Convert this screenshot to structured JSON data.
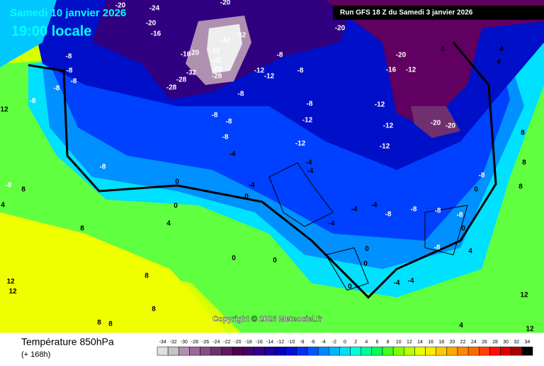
{
  "header": {
    "date": "Samedi 10 janvier 2026",
    "time": "19:00 locale",
    "run": "Run GFS 18 Z du Samedi 3 janvier 2026"
  },
  "copyright": "Copyright © 2026 Meteociel.fr",
  "footer": {
    "title": "Température 850hPa",
    "lead": "(+ 168h)"
  },
  "legend": {
    "ticks": [
      -34,
      -32,
      -30,
      -28,
      -26,
      -24,
      -22,
      -20,
      -18,
      -16,
      -14,
      -12,
      -10,
      -8,
      -6,
      -4,
      -2,
      0,
      2,
      4,
      6,
      8,
      10,
      12,
      14,
      16,
      18,
      20,
      22,
      24,
      26,
      28,
      30,
      32,
      34
    ],
    "colors": [
      "#e0e0e0",
      "#c4c4c4",
      "#b090b0",
      "#9a6a9a",
      "#845084",
      "#703070",
      "#601860",
      "#500050",
      "#42006a",
      "#320088",
      "#2000a0",
      "#0800b8",
      "#0010d8",
      "#0030f0",
      "#0058ff",
      "#0088ff",
      "#00b4ff",
      "#00e0ff",
      "#00ffd8",
      "#00ff98",
      "#00ff58",
      "#40ff20",
      "#80ff00",
      "#b8ff00",
      "#e8ff00",
      "#ffe800",
      "#ffc800",
      "#ffa800",
      "#ff8800",
      "#ff6800",
      "#ff4000",
      "#ff1000",
      "#d80000",
      "#a80000",
      "#000000"
    ]
  },
  "contour_labels": [
    -20,
    -24,
    -20,
    -16,
    -20,
    -32,
    -32,
    -32,
    -32,
    -28,
    -28,
    -20,
    -16,
    -32,
    -28,
    -28,
    -8,
    -8,
    -8,
    -8,
    -8,
    12,
    -8,
    -8,
    -12,
    -12,
    -8,
    -8,
    -8,
    -8,
    -4,
    -8,
    -8,
    -12,
    -12,
    -12,
    -12,
    -12,
    -20,
    -20,
    -16,
    -12,
    -20,
    -20,
    0,
    4,
    4,
    8,
    8,
    8,
    -8,
    8,
    0,
    0,
    4,
    8,
    0,
    -4,
    -4,
    -4,
    -4,
    -4,
    -4,
    -8,
    -8,
    -8,
    -8,
    0,
    -8,
    0,
    -8,
    0,
    0,
    0,
    0,
    0,
    -4,
    -4,
    4,
    12,
    12,
    8,
    8,
    8,
    8,
    12,
    12,
    4,
    4
  ]
}
